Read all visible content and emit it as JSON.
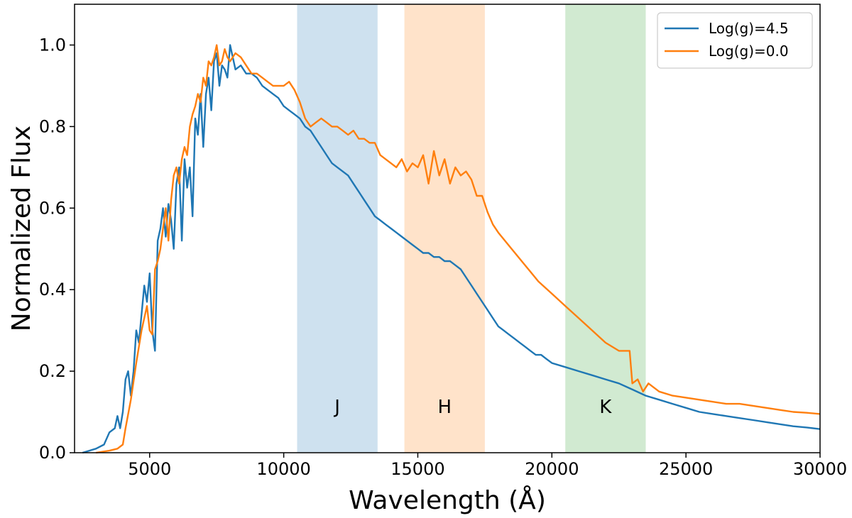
{
  "chart_data": {
    "type": "line",
    "title": "",
    "xlabel": "Wavelength (Å)",
    "ylabel": "Normalized Flux",
    "xlim": [
      2200,
      30000
    ],
    "ylim": [
      0,
      1.1
    ],
    "x_ticks": [
      5000,
      10000,
      15000,
      20000,
      25000,
      30000
    ],
    "y_ticks": [
      0.0,
      0.2,
      0.4,
      0.6,
      0.8,
      1.0
    ],
    "x_tick_labels": [
      "5000",
      "10000",
      "15000",
      "20000",
      "25000",
      "30000"
    ],
    "y_tick_labels": [
      "0.0",
      "0.2",
      "0.4",
      "0.6",
      "0.8",
      "1.0"
    ],
    "grid": false,
    "legend_position": "top-right",
    "bands": [
      {
        "name": "J",
        "x0": 10500,
        "x1": 13500,
        "color": "#1f77b4"
      },
      {
        "name": "H",
        "x0": 14500,
        "x1": 17500,
        "color": "#ff7f0e"
      },
      {
        "name": "K",
        "x0": 20500,
        "x1": 23500,
        "color": "#2ca02c"
      }
    ],
    "series": [
      {
        "name": "Log(g)=4.5",
        "color": "#1f77b4",
        "x": [
          2500,
          3000,
          3300,
          3500,
          3700,
          3800,
          3900,
          4000,
          4100,
          4200,
          4300,
          4400,
          4500,
          4600,
          4700,
          4800,
          4900,
          5000,
          5100,
          5200,
          5300,
          5400,
          5500,
          5600,
          5700,
          5800,
          5900,
          6000,
          6100,
          6200,
          6300,
          6400,
          6500,
          6600,
          6700,
          6800,
          6900,
          7000,
          7100,
          7200,
          7300,
          7400,
          7500,
          7600,
          7700,
          7800,
          7900,
          8000,
          8200,
          8400,
          8600,
          8800,
          9000,
          9200,
          9400,
          9600,
          9800,
          10000,
          10200,
          10400,
          10600,
          10800,
          11000,
          11200,
          11400,
          11600,
          11800,
          12000,
          12200,
          12400,
          12600,
          12800,
          13000,
          13200,
          13400,
          13600,
          13800,
          14000,
          14200,
          14400,
          14600,
          14800,
          15000,
          15200,
          15400,
          15600,
          15800,
          16000,
          16200,
          16400,
          16600,
          16800,
          17000,
          17200,
          17400,
          17600,
          17800,
          18000,
          18200,
          18400,
          18600,
          18800,
          19000,
          19200,
          19400,
          19600,
          19800,
          20000,
          20500,
          21000,
          21500,
          22000,
          22500,
          23000,
          23500,
          24000,
          24500,
          25000,
          25500,
          26000,
          26500,
          27000,
          27500,
          28000,
          28500,
          29000,
          29500,
          30000
        ],
        "values": [
          0.0,
          0.01,
          0.02,
          0.05,
          0.06,
          0.09,
          0.06,
          0.1,
          0.18,
          0.2,
          0.14,
          0.2,
          0.3,
          0.27,
          0.34,
          0.41,
          0.37,
          0.44,
          0.3,
          0.25,
          0.52,
          0.55,
          0.6,
          0.53,
          0.61,
          0.57,
          0.5,
          0.66,
          0.7,
          0.52,
          0.72,
          0.65,
          0.7,
          0.58,
          0.82,
          0.78,
          0.88,
          0.75,
          0.88,
          0.92,
          0.84,
          0.96,
          0.98,
          0.9,
          0.95,
          0.94,
          0.92,
          1.0,
          0.94,
          0.95,
          0.93,
          0.93,
          0.92,
          0.9,
          0.89,
          0.88,
          0.87,
          0.85,
          0.84,
          0.83,
          0.82,
          0.8,
          0.79,
          0.77,
          0.75,
          0.73,
          0.71,
          0.7,
          0.69,
          0.68,
          0.66,
          0.64,
          0.62,
          0.6,
          0.58,
          0.57,
          0.56,
          0.55,
          0.54,
          0.53,
          0.52,
          0.51,
          0.5,
          0.49,
          0.49,
          0.48,
          0.48,
          0.47,
          0.47,
          0.46,
          0.45,
          0.43,
          0.41,
          0.39,
          0.37,
          0.35,
          0.33,
          0.31,
          0.3,
          0.29,
          0.28,
          0.27,
          0.26,
          0.25,
          0.24,
          0.24,
          0.23,
          0.22,
          0.21,
          0.2,
          0.19,
          0.18,
          0.17,
          0.155,
          0.14,
          0.13,
          0.12,
          0.11,
          0.1,
          0.095,
          0.09,
          0.085,
          0.08,
          0.075,
          0.07,
          0.065,
          0.062,
          0.058
        ]
      },
      {
        "name": "Log(g)=0.0",
        "color": "#ff7f0e",
        "x": [
          3000,
          3500,
          3800,
          4000,
          4100,
          4300,
          4500,
          4700,
          4800,
          4900,
          5000,
          5100,
          5200,
          5300,
          5400,
          5500,
          5600,
          5700,
          5800,
          5900,
          6000,
          6100,
          6200,
          6300,
          6400,
          6500,
          6600,
          6700,
          6800,
          6900,
          7000,
          7100,
          7200,
          7300,
          7400,
          7500,
          7600,
          7700,
          7800,
          7900,
          8000,
          8200,
          8400,
          8600,
          8800,
          9000,
          9200,
          9400,
          9600,
          9800,
          10000,
          10200,
          10400,
          10600,
          10800,
          11000,
          11200,
          11400,
          11600,
          11800,
          12000,
          12200,
          12400,
          12600,
          12800,
          13000,
          13200,
          13400,
          13600,
          13800,
          14000,
          14200,
          14400,
          14600,
          14800,
          15000,
          15200,
          15400,
          15600,
          15800,
          16000,
          16200,
          16400,
          16600,
          16800,
          17000,
          17200,
          17400,
          17600,
          17800,
          18000,
          18500,
          19000,
          19500,
          20000,
          20500,
          21000,
          21500,
          22000,
          22500,
          22900,
          23000,
          23200,
          23400,
          23600,
          23800,
          24000,
          24500,
          25000,
          25500,
          26000,
          26500,
          27000,
          27500,
          28000,
          28500,
          29000,
          29500,
          30000
        ],
        "values": [
          0.0,
          0.005,
          0.01,
          0.02,
          0.06,
          0.13,
          0.22,
          0.3,
          0.33,
          0.36,
          0.3,
          0.29,
          0.45,
          0.47,
          0.5,
          0.55,
          0.6,
          0.52,
          0.62,
          0.68,
          0.7,
          0.66,
          0.72,
          0.75,
          0.73,
          0.8,
          0.83,
          0.85,
          0.88,
          0.86,
          0.92,
          0.9,
          0.96,
          0.95,
          0.97,
          1.0,
          0.95,
          0.96,
          0.99,
          0.97,
          0.96,
          0.98,
          0.97,
          0.95,
          0.93,
          0.93,
          0.92,
          0.91,
          0.9,
          0.9,
          0.9,
          0.91,
          0.89,
          0.86,
          0.82,
          0.8,
          0.81,
          0.82,
          0.81,
          0.8,
          0.8,
          0.79,
          0.78,
          0.79,
          0.77,
          0.77,
          0.76,
          0.76,
          0.73,
          0.72,
          0.71,
          0.7,
          0.72,
          0.69,
          0.71,
          0.7,
          0.73,
          0.66,
          0.74,
          0.68,
          0.72,
          0.66,
          0.7,
          0.68,
          0.69,
          0.67,
          0.63,
          0.63,
          0.59,
          0.56,
          0.54,
          0.5,
          0.46,
          0.42,
          0.39,
          0.36,
          0.33,
          0.3,
          0.27,
          0.25,
          0.25,
          0.17,
          0.18,
          0.15,
          0.17,
          0.16,
          0.15,
          0.14,
          0.135,
          0.13,
          0.125,
          0.12,
          0.12,
          0.115,
          0.11,
          0.105,
          0.1,
          0.098,
          0.095
        ]
      }
    ]
  }
}
